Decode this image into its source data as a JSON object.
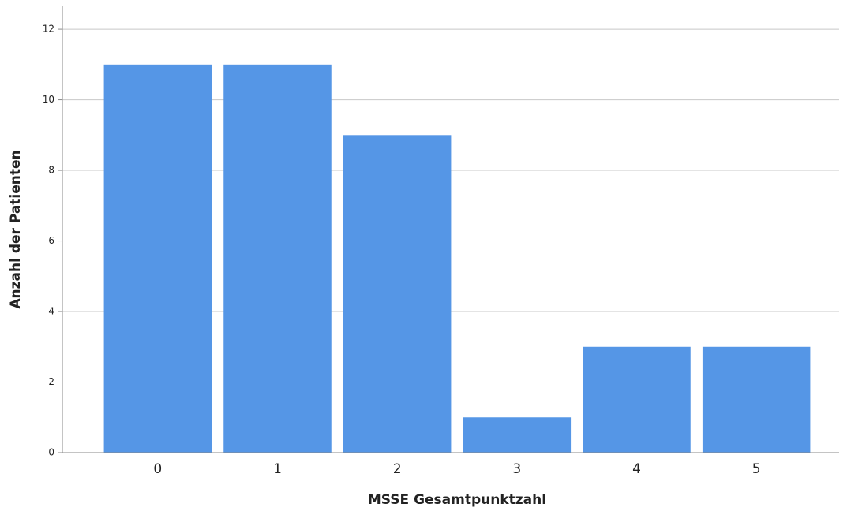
{
  "chart_data": {
    "type": "bar",
    "x_label": "MSSE Gesamtpunktzahl",
    "y_label": "Anzahl der Patienten",
    "categories": [
      "0",
      "1",
      "2",
      "3",
      "4",
      "5"
    ],
    "values": [
      11,
      11,
      9,
      1,
      3,
      3
    ],
    "color": "#5596e6",
    "ylim": [
      0,
      12.65
    ],
    "yticks": [
      0,
      2,
      4,
      6,
      8,
      10,
      12
    ],
    "grid": true
  }
}
